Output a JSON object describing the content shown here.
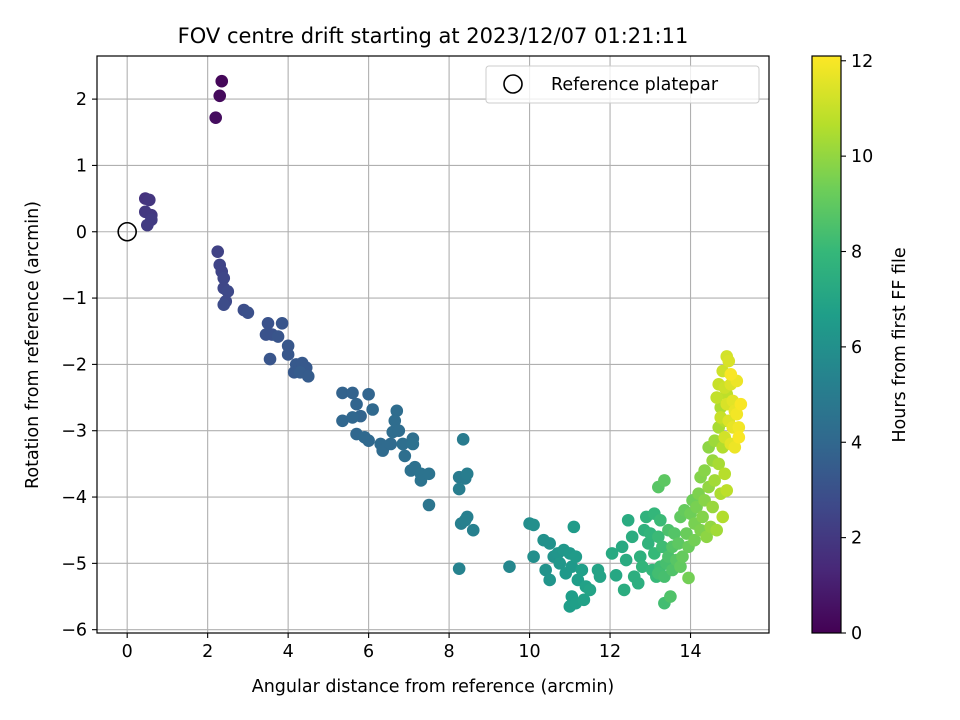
{
  "chart_data": {
    "type": "scatter",
    "title": "FOV centre drift starting at 2023/12/07 01:21:11",
    "xlabel": "Angular distance from reference (arcmin)",
    "ylabel": "Rotation from reference (arcmin)",
    "xlim": [
      -0.75,
      15.95
    ],
    "ylim": [
      -6.05,
      2.65
    ],
    "xticks": [
      0,
      2,
      4,
      6,
      8,
      10,
      12,
      14
    ],
    "yticks": [
      -6,
      -5,
      -4,
      -3,
      -2,
      -1,
      0,
      1,
      2
    ],
    "grid": true,
    "legend": {
      "position": "top-right",
      "entries": [
        {
          "label": "Reference platepar",
          "marker": "open-circle"
        }
      ]
    },
    "reference": {
      "x": 0,
      "y": 0
    },
    "colorbar": {
      "label": "Hours from first FF file",
      "range": [
        0,
        12.1
      ],
      "ticks": [
        0,
        2,
        4,
        6,
        8,
        10,
        12
      ],
      "colormap": "viridis"
    },
    "series": [
      {
        "points": [
          [
            2.35,
            2.27,
            0.2
          ],
          [
            2.3,
            2.05,
            0.3
          ],
          [
            2.2,
            1.72,
            0.4
          ],
          [
            0.45,
            0.5,
            1.8
          ],
          [
            0.55,
            0.48,
            1.9
          ],
          [
            0.45,
            0.3,
            2.0
          ],
          [
            0.6,
            0.25,
            2.0
          ],
          [
            0.6,
            0.18,
            2.1
          ],
          [
            0.5,
            0.1,
            2.1
          ],
          [
            2.25,
            -0.3,
            2.4
          ],
          [
            2.3,
            -0.5,
            2.5
          ],
          [
            2.35,
            -0.6,
            2.5
          ],
          [
            2.4,
            -0.7,
            2.6
          ],
          [
            2.4,
            -0.85,
            2.6
          ],
          [
            2.5,
            -0.9,
            2.7
          ],
          [
            2.45,
            -1.05,
            2.7
          ],
          [
            2.4,
            -1.1,
            2.8
          ],
          [
            2.9,
            -1.18,
            2.9
          ],
          [
            3.0,
            -1.22,
            3.0
          ],
          [
            3.5,
            -1.38,
            3.1
          ],
          [
            3.45,
            -1.55,
            3.1
          ],
          [
            3.6,
            -1.55,
            3.1
          ],
          [
            3.75,
            -1.58,
            3.2
          ],
          [
            3.85,
            -1.38,
            3.2
          ],
          [
            3.55,
            -1.92,
            3.2
          ],
          [
            4.0,
            -1.72,
            3.3
          ],
          [
            4.0,
            -1.85,
            3.3
          ],
          [
            4.2,
            -2.0,
            3.4
          ],
          [
            4.35,
            -1.98,
            3.4
          ],
          [
            4.45,
            -2.05,
            3.4
          ],
          [
            4.15,
            -2.12,
            3.4
          ],
          [
            4.3,
            -2.12,
            3.5
          ],
          [
            4.5,
            -2.18,
            3.5
          ],
          [
            5.35,
            -2.43,
            3.8
          ],
          [
            5.6,
            -2.43,
            3.8
          ],
          [
            5.7,
            -2.6,
            3.9
          ],
          [
            5.8,
            -2.78,
            3.9
          ],
          [
            6.0,
            -2.45,
            3.9
          ],
          [
            5.35,
            -2.85,
            4.0
          ],
          [
            5.6,
            -2.8,
            4.0
          ],
          [
            5.7,
            -3.05,
            4.0
          ],
          [
            5.9,
            -3.1,
            4.1
          ],
          [
            6.1,
            -2.68,
            4.1
          ],
          [
            6.0,
            -3.15,
            4.1
          ],
          [
            6.3,
            -3.2,
            4.2
          ],
          [
            6.35,
            -3.3,
            4.2
          ],
          [
            6.55,
            -3.2,
            4.2
          ],
          [
            6.6,
            -3.02,
            4.3
          ],
          [
            6.7,
            -2.7,
            4.3
          ],
          [
            6.65,
            -2.85,
            4.3
          ],
          [
            6.75,
            -3.0,
            4.3
          ],
          [
            6.85,
            -3.2,
            4.4
          ],
          [
            6.9,
            -3.38,
            4.4
          ],
          [
            7.1,
            -3.12,
            4.4
          ],
          [
            7.1,
            -3.2,
            4.5
          ],
          [
            7.05,
            -3.6,
            4.5
          ],
          [
            7.15,
            -3.55,
            4.5
          ],
          [
            7.3,
            -3.65,
            4.6
          ],
          [
            7.3,
            -3.75,
            4.6
          ],
          [
            7.5,
            -3.65,
            4.6
          ],
          [
            7.5,
            -4.12,
            4.7
          ],
          [
            8.35,
            -3.13,
            5.0
          ],
          [
            8.25,
            -3.7,
            5.0
          ],
          [
            8.4,
            -3.72,
            5.0
          ],
          [
            8.45,
            -3.65,
            5.1
          ],
          [
            8.25,
            -3.88,
            5.1
          ],
          [
            8.3,
            -4.4,
            5.2
          ],
          [
            8.45,
            -4.3,
            5.2
          ],
          [
            8.4,
            -4.35,
            5.3
          ],
          [
            8.6,
            -4.5,
            5.3
          ],
          [
            8.25,
            -5.08,
            5.4
          ],
          [
            9.5,
            -5.05,
            5.6
          ],
          [
            10.0,
            -4.4,
            5.9
          ],
          [
            10.1,
            -4.42,
            6.0
          ],
          [
            10.1,
            -4.9,
            6.0
          ],
          [
            10.35,
            -4.65,
            6.1
          ],
          [
            10.5,
            -4.7,
            6.1
          ],
          [
            10.6,
            -4.9,
            6.2
          ],
          [
            10.4,
            -5.1,
            6.2
          ],
          [
            10.5,
            -5.25,
            6.3
          ],
          [
            10.7,
            -4.85,
            6.3
          ],
          [
            10.75,
            -5.0,
            6.4
          ],
          [
            10.85,
            -4.8,
            6.4
          ],
          [
            10.9,
            -5.15,
            6.5
          ],
          [
            11.0,
            -4.85,
            6.5
          ],
          [
            11.05,
            -5.05,
            6.5
          ],
          [
            11.1,
            -4.45,
            6.6
          ],
          [
            11.15,
            -4.9,
            6.6
          ],
          [
            11.2,
            -5.25,
            6.7
          ],
          [
            11.05,
            -5.5,
            6.7
          ],
          [
            11.0,
            -5.65,
            6.7
          ],
          [
            11.15,
            -5.6,
            6.8
          ],
          [
            11.3,
            -5.1,
            6.8
          ],
          [
            11.4,
            -5.35,
            6.9
          ],
          [
            11.35,
            -5.55,
            6.9
          ],
          [
            11.5,
            -5.4,
            7.0
          ],
          [
            11.7,
            -5.1,
            7.0
          ],
          [
            11.75,
            -5.2,
            7.0
          ],
          [
            12.15,
            -5.18,
            7.2
          ],
          [
            12.05,
            -4.85,
            7.3
          ],
          [
            12.3,
            -4.75,
            7.3
          ],
          [
            12.4,
            -4.95,
            7.4
          ],
          [
            12.45,
            -4.35,
            7.4
          ],
          [
            12.55,
            -4.6,
            7.5
          ],
          [
            12.35,
            -5.4,
            7.5
          ],
          [
            12.6,
            -5.2,
            7.6
          ],
          [
            12.7,
            -5.3,
            7.6
          ],
          [
            12.75,
            -4.9,
            7.7
          ],
          [
            12.85,
            -4.5,
            7.7
          ],
          [
            12.9,
            -4.3,
            7.8
          ],
          [
            12.95,
            -4.7,
            7.8
          ],
          [
            12.8,
            -5.05,
            7.9
          ],
          [
            13.0,
            -4.55,
            7.9
          ],
          [
            13.05,
            -5.1,
            8.0
          ],
          [
            13.1,
            -4.25,
            8.0
          ],
          [
            13.1,
            -4.85,
            8.1
          ],
          [
            13.15,
            -5.2,
            8.1
          ],
          [
            13.2,
            -4.6,
            8.2
          ],
          [
            13.25,
            -4.35,
            8.2
          ],
          [
            13.25,
            -5.05,
            8.3
          ],
          [
            13.3,
            -4.75,
            8.3
          ],
          [
            13.2,
            -5.15,
            8.4
          ],
          [
            13.35,
            -5.6,
            8.4
          ],
          [
            13.35,
            -5.2,
            8.5
          ],
          [
            13.4,
            -5.0,
            8.5
          ],
          [
            13.45,
            -4.5,
            8.6
          ],
          [
            13.45,
            -4.9,
            8.6
          ],
          [
            13.5,
            -5.5,
            8.7
          ],
          [
            13.55,
            -5.1,
            8.7
          ],
          [
            13.55,
            -4.75,
            8.8
          ],
          [
            13.6,
            -4.55,
            8.8
          ],
          [
            13.65,
            -4.95,
            8.9
          ],
          [
            13.2,
            -3.85,
            8.9
          ],
          [
            13.35,
            -3.75,
            9.0
          ],
          [
            13.7,
            -4.7,
            9.0
          ],
          [
            13.75,
            -5.05,
            9.1
          ],
          [
            13.75,
            -4.3,
            9.1
          ],
          [
            13.8,
            -4.9,
            9.2
          ],
          [
            13.85,
            -4.2,
            9.2
          ],
          [
            13.9,
            -4.55,
            9.3
          ],
          [
            13.95,
            -4.75,
            9.3
          ],
          [
            14.0,
            -4.25,
            9.4
          ],
          [
            14.05,
            -4.05,
            9.4
          ],
          [
            13.95,
            -5.22,
            9.5
          ],
          [
            14.1,
            -4.65,
            9.5
          ],
          [
            14.1,
            -4.4,
            9.6
          ],
          [
            14.15,
            -4.15,
            9.6
          ],
          [
            14.2,
            -3.95,
            9.7
          ],
          [
            14.25,
            -4.5,
            9.7
          ],
          [
            14.25,
            -3.7,
            9.8
          ],
          [
            14.3,
            -4.3,
            9.8
          ],
          [
            14.35,
            -4.05,
            9.9
          ],
          [
            14.35,
            -3.6,
            9.9
          ],
          [
            14.4,
            -4.6,
            10.0
          ],
          [
            14.45,
            -3.25,
            10.0
          ],
          [
            14.45,
            -3.85,
            10.1
          ],
          [
            14.5,
            -4.45,
            10.1
          ],
          [
            14.55,
            -3.45,
            10.2
          ],
          [
            14.55,
            -4.15,
            10.2
          ],
          [
            14.6,
            -3.15,
            10.3
          ],
          [
            14.6,
            -3.75,
            10.4
          ],
          [
            14.65,
            -4.5,
            10.4
          ],
          [
            14.7,
            -3.5,
            10.5
          ],
          [
            14.7,
            -2.95,
            10.5
          ],
          [
            14.75,
            -3.95,
            10.6
          ],
          [
            14.75,
            -2.65,
            10.6
          ],
          [
            14.8,
            -4.3,
            10.7
          ],
          [
            14.8,
            -3.25,
            10.7
          ],
          [
            14.85,
            -3.65,
            10.8
          ],
          [
            14.85,
            -2.85,
            10.8
          ],
          [
            14.9,
            -3.9,
            10.9
          ],
          [
            14.9,
            -2.45,
            10.9
          ],
          [
            14.65,
            -2.5,
            11.0
          ],
          [
            14.7,
            -2.3,
            11.1
          ],
          [
            14.75,
            -2.8,
            11.1
          ],
          [
            14.8,
            -2.1,
            11.2
          ],
          [
            14.85,
            -2.35,
            11.2
          ],
          [
            14.85,
            -3.1,
            11.3
          ],
          [
            14.9,
            -1.88,
            11.3
          ],
          [
            14.9,
            -2.6,
            11.4
          ],
          [
            14.95,
            -1.95,
            11.4
          ],
          [
            14.95,
            -2.85,
            11.5
          ],
          [
            15.0,
            -2.3,
            11.5
          ],
          [
            15.0,
            -3.2,
            11.6
          ],
          [
            15.05,
            -2.55,
            11.6
          ],
          [
            15.05,
            -2.95,
            11.7
          ],
          [
            15.1,
            -2.7,
            11.7
          ],
          [
            15.1,
            -3.25,
            11.8
          ],
          [
            15.15,
            -2.25,
            11.8
          ],
          [
            15.15,
            -2.75,
            11.9
          ],
          [
            15.2,
            -2.95,
            11.9
          ],
          [
            15.2,
            -3.1,
            12.0
          ],
          [
            15.25,
            -2.6,
            12.0
          ],
          [
            15.0,
            -2.15,
            12.0
          ]
        ]
      }
    ]
  }
}
